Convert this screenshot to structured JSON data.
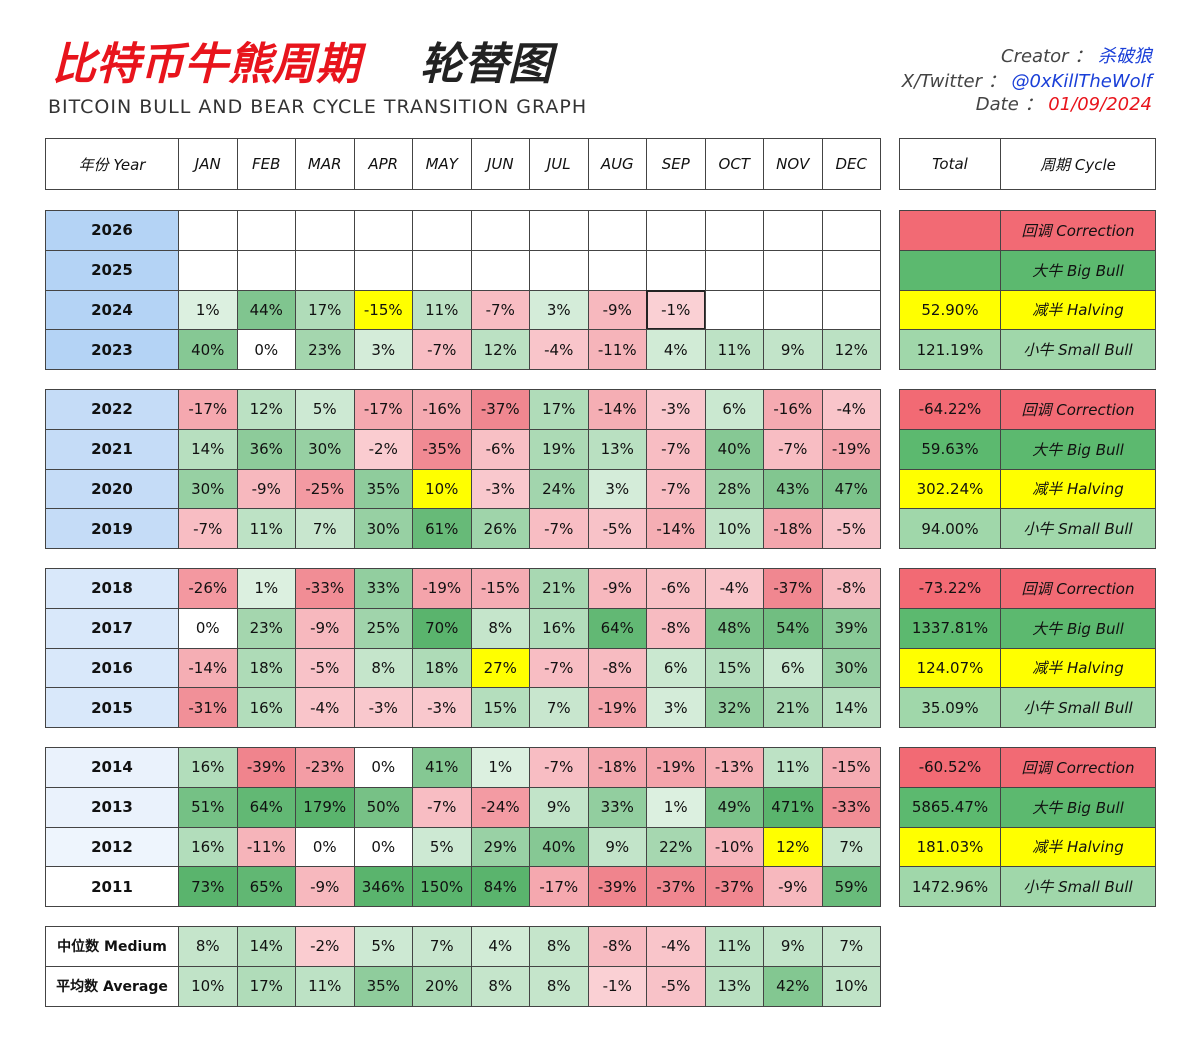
{
  "header": {
    "title_red": "比特币牛熊周期",
    "title_black": "轮替图",
    "subtitle": "BITCOIN BULL AND BEAR CYCLE TRANSITION GRAPH",
    "creator_label": "Creator ：",
    "creator": "杀破狼",
    "twitter_label": "X/Twitter ：",
    "twitter": "@0xKillTheWolf",
    "date_label": "Date ：",
    "date": "01/09/2024"
  },
  "table": {
    "columns": [
      "年份 Year",
      "JAN",
      "FEB",
      "MAR",
      "APR",
      "MAY",
      "JUN",
      "JUL",
      "AUG",
      "SEP",
      "OCT",
      "NOV",
      "DEC",
      "Total",
      "周期 Cycle"
    ],
    "groups": [
      [
        {
          "year": "2026",
          "months": [
            null,
            null,
            null,
            null,
            null,
            null,
            null,
            null,
            null,
            null,
            null,
            null
          ],
          "total": null,
          "cycle": "回调 Correction"
        },
        {
          "year": "2025",
          "months": [
            null,
            null,
            null,
            null,
            null,
            null,
            null,
            null,
            null,
            null,
            null,
            null
          ],
          "total": null,
          "cycle": "大牛 Big Bull"
        },
        {
          "year": "2024",
          "months": [
            "1%",
            "44%",
            "17%",
            "-15%",
            "11%",
            "-7%",
            "3%",
            "-9%",
            "-1%",
            null,
            null,
            null
          ],
          "total": "52.90%",
          "cycle": "减半 Halving",
          "highlight": 3,
          "current": 8
        },
        {
          "year": "2023",
          "months": [
            "40%",
            "0%",
            "23%",
            "3%",
            "-7%",
            "12%",
            "-4%",
            "-11%",
            "4%",
            "11%",
            "9%",
            "12%"
          ],
          "total": "121.19%",
          "cycle": "小牛 Small Bull"
        }
      ],
      [
        {
          "year": "2022",
          "months": [
            "-17%",
            "12%",
            "5%",
            "-17%",
            "-16%",
            "-37%",
            "17%",
            "-14%",
            "-3%",
            "6%",
            "-16%",
            "-4%"
          ],
          "total": "-64.22%",
          "cycle": "回调 Correction"
        },
        {
          "year": "2021",
          "months": [
            "14%",
            "36%",
            "30%",
            "-2%",
            "-35%",
            "-6%",
            "19%",
            "13%",
            "-7%",
            "40%",
            "-7%",
            "-19%"
          ],
          "total": "59.63%",
          "cycle": "大牛 Big Bull"
        },
        {
          "year": "2020",
          "months": [
            "30%",
            "-9%",
            "-25%",
            "35%",
            "10%",
            "-3%",
            "24%",
            "3%",
            "-7%",
            "28%",
            "43%",
            "47%"
          ],
          "total": "302.24%",
          "cycle": "减半 Halving",
          "highlight": 4
        },
        {
          "year": "2019",
          "months": [
            "-7%",
            "11%",
            "7%",
            "30%",
            "61%",
            "26%",
            "-7%",
            "-5%",
            "-14%",
            "10%",
            "-18%",
            "-5%"
          ],
          "total": "94.00%",
          "cycle": "小牛 Small Bull"
        }
      ],
      [
        {
          "year": "2018",
          "months": [
            "-26%",
            "1%",
            "-33%",
            "33%",
            "-19%",
            "-15%",
            "21%",
            "-9%",
            "-6%",
            "-4%",
            "-37%",
            "-8%"
          ],
          "total": "-73.22%",
          "cycle": "回调 Correction"
        },
        {
          "year": "2017",
          "months": [
            "0%",
            "23%",
            "-9%",
            "25%",
            "70%",
            "8%",
            "16%",
            "64%",
            "-8%",
            "48%",
            "54%",
            "39%"
          ],
          "total": "1337.81%",
          "cycle": "大牛 Big Bull"
        },
        {
          "year": "2016",
          "months": [
            "-14%",
            "18%",
            "-5%",
            "8%",
            "18%",
            "27%",
            "-7%",
            "-8%",
            "6%",
            "15%",
            "6%",
            "30%"
          ],
          "total": "124.07%",
          "cycle": "减半 Halving",
          "highlight": 5
        },
        {
          "year": "2015",
          "months": [
            "-31%",
            "16%",
            "-4%",
            "-3%",
            "-3%",
            "15%",
            "7%",
            "-19%",
            "3%",
            "32%",
            "21%",
            "14%"
          ],
          "total": "35.09%",
          "cycle": "小牛 Small Bull"
        }
      ],
      [
        {
          "year": "2014",
          "months": [
            "16%",
            "-39%",
            "-23%",
            "0%",
            "41%",
            "1%",
            "-7%",
            "-18%",
            "-19%",
            "-13%",
            "11%",
            "-15%"
          ],
          "total": "-60.52%",
          "cycle": "回调 Correction"
        },
        {
          "year": "2013",
          "months": [
            "51%",
            "64%",
            "179%",
            "50%",
            "-7%",
            "-24%",
            "9%",
            "33%",
            "1%",
            "49%",
            "471%",
            "-33%"
          ],
          "total": "5865.47%",
          "cycle": "大牛 Big Bull"
        },
        {
          "year": "2012",
          "months": [
            "16%",
            "-11%",
            "0%",
            "0%",
            "5%",
            "29%",
            "40%",
            "9%",
            "22%",
            "-10%",
            "12%",
            "7%"
          ],
          "total": "181.03%",
          "cycle": "减半 Halving",
          "highlight": 10
        },
        {
          "year": "2011",
          "months": [
            "73%",
            "65%",
            "-9%",
            "346%",
            "150%",
            "84%",
            "-17%",
            "-39%",
            "-37%",
            "-37%",
            "-9%",
            "59%"
          ],
          "total": "1472.96%",
          "cycle": "小牛 Small Bull"
        }
      ]
    ],
    "stats": [
      {
        "label": "中位数 Medium",
        "values": [
          "8%",
          "14%",
          "-2%",
          "5%",
          "7%",
          "4%",
          "8%",
          "-8%",
          "-4%",
          "11%",
          "9%",
          "7%"
        ]
      },
      {
        "label": "平均数 Average",
        "values": [
          "10%",
          "17%",
          "11%",
          "35%",
          "20%",
          "8%",
          "8%",
          "-1%",
          "-5%",
          "13%",
          "42%",
          "10%"
        ]
      }
    ]
  }
}
